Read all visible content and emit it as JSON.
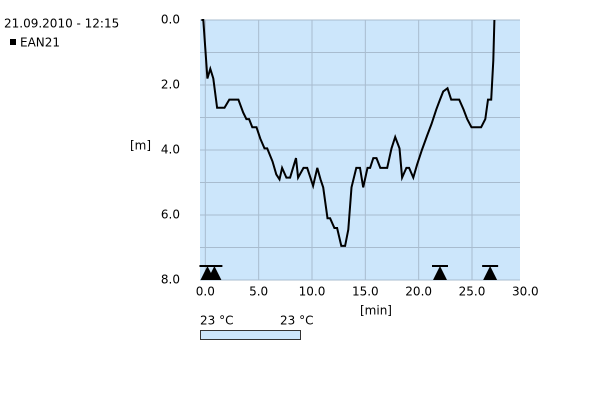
{
  "chart_data": {
    "type": "line",
    "title": "21.09.2010 - 12:15",
    "xlabel": "[min]",
    "ylabel": "[m]",
    "xlim": [
      -0.5,
      29.5
    ],
    "ylim": [
      8,
      0
    ],
    "xticks": [
      {
        "value": 0,
        "label": "0.0"
      },
      {
        "value": 5,
        "label": "5.0"
      },
      {
        "value": 10,
        "label": "10.0"
      },
      {
        "value": 15,
        "label": "15.0"
      },
      {
        "value": 20,
        "label": "20.0"
      },
      {
        "value": 25,
        "label": "25.0"
      },
      {
        "value": 30,
        "label": "30.0"
      }
    ],
    "yticks": [
      {
        "value": 0,
        "label": "0.0"
      },
      {
        "value": 2,
        "label": "2.0"
      },
      {
        "value": 4,
        "label": "4.0"
      },
      {
        "value": 6,
        "label": "6.0"
      },
      {
        "value": 8,
        "label": "8.0"
      }
    ],
    "minor_yticks": [
      1,
      3,
      5,
      7
    ],
    "grid": true,
    "background": "#cce6fb",
    "series": [
      {
        "name": "EAN21",
        "color": "#000000",
        "x": [
          -0.37,
          -0.19,
          0.19,
          0.47,
          0.75,
          1.1,
          1.8,
          2.25,
          3.1,
          3.55,
          3.85,
          4.1,
          4.4,
          4.8,
          5.15,
          5.55,
          5.8,
          6.3,
          6.65,
          6.95,
          7.2,
          7.6,
          7.95,
          8.5,
          8.7,
          9.2,
          9.55,
          10.1,
          10.5,
          10.8,
          11.05,
          11.45,
          11.7,
          12.1,
          12.35,
          12.75,
          13.1,
          13.4,
          13.7,
          14.15,
          14.5,
          14.8,
          15.2,
          15.45,
          15.75,
          16.05,
          16.4,
          17.05,
          17.45,
          17.8,
          18.2,
          18.45,
          18.85,
          19.1,
          19.5,
          19.85,
          20.3,
          20.8,
          21.2,
          21.65,
          22.0,
          22.3,
          22.7,
          23.05,
          23.8,
          24.2,
          24.55,
          24.95,
          25.85,
          26.25,
          26.5,
          26.8,
          27.0,
          27.1
        ],
        "values": [
          0,
          0,
          1.8,
          1.5,
          1.8,
          2.7,
          2.7,
          2.45,
          2.45,
          2.85,
          3.05,
          3.05,
          3.3,
          3.3,
          3.65,
          3.95,
          3.95,
          4.35,
          4.75,
          4.9,
          4.55,
          4.85,
          4.85,
          4.25,
          4.85,
          4.55,
          4.55,
          5.1,
          4.55,
          4.9,
          5.15,
          6.1,
          6.1,
          6.4,
          6.4,
          6.95,
          6.95,
          6.45,
          5.15,
          4.55,
          4.55,
          5.15,
          4.55,
          4.55,
          4.25,
          4.25,
          4.55,
          4.55,
          3.95,
          3.6,
          3.95,
          4.85,
          4.55,
          4.55,
          4.85,
          4.45,
          4.0,
          3.55,
          3.2,
          2.75,
          2.45,
          2.2,
          2.1,
          2.45,
          2.45,
          2.75,
          3.05,
          3.3,
          3.3,
          3.05,
          2.45,
          2.45,
          1.25,
          0
        ]
      }
    ],
    "events": [
      0.2,
      0.85,
      22.0,
      26.7
    ],
    "color_scale": {
      "labels": [
        "23 °C",
        "23 °C"
      ],
      "color": "#cce6fb"
    }
  }
}
